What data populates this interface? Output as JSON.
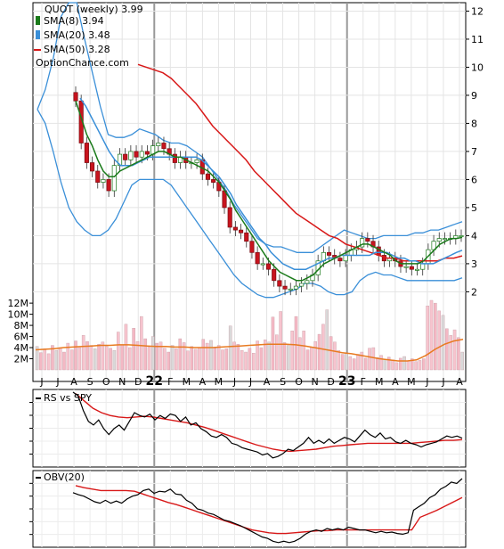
{
  "chart_data": [
    {
      "type": "candlestick",
      "legend": {
        "title": "QUOT (weekly) 3.99",
        "items": [
          {
            "label": "SMA(8) 3.94",
            "color": "#1a7a1a"
          },
          {
            "label": "SMA(20) 3.48",
            "color": "#3a8fd8"
          },
          {
            "label": "SMA(50) 3.28",
            "color": "#d81818"
          }
        ],
        "watermark": "OptionChance.com"
      },
      "y_ticks": [
        "12",
        "11",
        "10",
        "9",
        "8",
        "7",
        "6",
        "5",
        "4",
        "3",
        "2"
      ],
      "ylim": [
        1.6,
        12.3
      ],
      "x_ticks": [
        "J",
        "J",
        "A",
        "S",
        "O",
        "N",
        "D",
        "22",
        "F",
        "M",
        "A",
        "M",
        "J",
        "J",
        "A",
        "S",
        "O",
        "N",
        "D",
        "23",
        "F",
        "M",
        "A",
        "M",
        "J",
        "J",
        "A"
      ],
      "close": [
        8.8,
        7.3,
        6.6,
        6.3,
        5.9,
        6.0,
        5.6,
        6.5,
        6.9,
        6.7,
        7.0,
        6.8,
        7.0,
        6.9,
        7.2,
        7.3,
        7.1,
        6.9,
        6.6,
        6.8,
        6.6,
        6.6,
        6.7,
        6.2,
        6.0,
        5.9,
        5.6,
        5.0,
        4.3,
        4.2,
        4.1,
        3.8,
        3.4,
        3.0,
        3.0,
        2.8,
        2.4,
        2.2,
        2.1,
        2.1,
        2.2,
        2.3,
        2.4,
        2.6,
        3.1,
        3.4,
        3.3,
        3.2,
        3.1,
        3.3,
        3.5,
        3.6,
        3.9,
        3.8,
        3.6,
        3.3,
        3.1,
        3.2,
        3.1,
        2.9,
        2.9,
        2.8,
        2.8,
        3.0,
        3.5,
        3.8,
        3.9,
        3.9,
        3.9,
        4.0,
        4.0
      ],
      "sma8": [
        8.8,
        8.2,
        7.6,
        7.2,
        6.7,
        6.3,
        6.1,
        6.1,
        6.3,
        6.4,
        6.5,
        6.6,
        6.7,
        6.8,
        6.9,
        7.0,
        7.0,
        6.9,
        6.8,
        6.8,
        6.7,
        6.6,
        6.5,
        6.4,
        6.3,
        6.1,
        5.9,
        5.6,
        5.3,
        4.9,
        4.6,
        4.3,
        4.0,
        3.7,
        3.4,
        3.1,
        2.9,
        2.7,
        2.6,
        2.5,
        2.4,
        2.4,
        2.5,
        2.6,
        2.8,
        3.0,
        3.1,
        3.2,
        3.3,
        3.4,
        3.5,
        3.6,
        3.7,
        3.7,
        3.6,
        3.5,
        3.4,
        3.3,
        3.1,
        3.0,
        3.0,
        3.0,
        3.0,
        3.1,
        3.3,
        3.5,
        3.7,
        3.8,
        3.9,
        3.9,
        3.94
      ],
      "sma20": [
        8.9,
        8.6,
        8.2,
        7.8,
        7.4,
        7.0,
        6.7,
        6.5,
        6.5,
        6.5,
        6.6,
        6.7,
        6.8,
        6.8,
        6.8,
        6.8,
        6.8,
        6.8,
        6.8,
        6.8,
        6.8,
        6.7,
        6.5,
        6.3,
        6.1,
        5.8,
        5.5,
        5.1,
        4.8,
        4.5,
        4.2,
        3.9,
        3.7,
        3.4,
        3.2,
        3.0,
        2.9,
        2.8,
        2.8,
        2.8,
        2.9,
        3.0,
        3.1,
        3.2,
        3.2,
        3.3,
        3.3,
        3.3,
        3.3,
        3.3,
        3.3,
        3.4,
        3.4,
        3.4,
        3.3,
        3.2,
        3.2,
        3.1,
        3.1,
        3.0,
        3.0,
        3.0,
        3.1,
        3.2,
        3.3,
        3.4,
        3.48
      ],
      "bb_upper": [
        8.5,
        9.2,
        10.3,
        11.8,
        12.3,
        12.3,
        11.0,
        9.8,
        8.6,
        7.6,
        7.5,
        7.5,
        7.6,
        7.8,
        7.7,
        7.6,
        7.4,
        7.3,
        7.3,
        7.2,
        7.0,
        6.8,
        6.4,
        6.0,
        5.6,
        5.1,
        4.7,
        4.3,
        3.9,
        3.7,
        3.6,
        3.6,
        3.5,
        3.4,
        3.4,
        3.4,
        3.6,
        3.8,
        4.0,
        4.2,
        4.1,
        4.0,
        3.9,
        3.9,
        4.0,
        4.0,
        4.0,
        4.0,
        4.1,
        4.1,
        4.2,
        4.2,
        4.3,
        4.4,
        4.5
      ],
      "bb_lower": [
        8.5,
        8.0,
        7.0,
        5.9,
        5.0,
        4.5,
        4.2,
        4.0,
        4.0,
        4.2,
        4.6,
        5.2,
        5.8,
        6.0,
        6.0,
        6.0,
        6.0,
        5.8,
        5.4,
        5.0,
        4.6,
        4.2,
        3.8,
        3.4,
        3.0,
        2.6,
        2.3,
        2.1,
        1.9,
        1.8,
        1.8,
        1.9,
        2.0,
        2.1,
        2.3,
        2.3,
        2.2,
        2.0,
        1.9,
        1.9,
        2.0,
        2.4,
        2.6,
        2.7,
        2.6,
        2.6,
        2.5,
        2.4,
        2.4,
        2.4,
        2.4,
        2.4,
        2.4,
        2.4,
        2.5
      ],
      "sma50": [
        10.1,
        10.0,
        9.9,
        9.8,
        9.6,
        9.3,
        9.0,
        8.7,
        8.3,
        7.9,
        7.6,
        7.3,
        7.0,
        6.7,
        6.3,
        6.0,
        5.7,
        5.4,
        5.1,
        4.8,
        4.6,
        4.4,
        4.2,
        4.0,
        3.9,
        3.7,
        3.6,
        3.5,
        3.4,
        3.3,
        3.2,
        3.2,
        3.1,
        3.1,
        3.1,
        3.1,
        3.1,
        3.2,
        3.2,
        3.28
      ]
    },
    {
      "type": "bar",
      "y_ticks": [
        "12M",
        "10M",
        "8M",
        "6M",
        "4M",
        "2M"
      ],
      "ylim": [
        0,
        12.5
      ],
      "volume": [
        4.2,
        3.1,
        3.8,
        2.9,
        4.4,
        3.5,
        4.0,
        3.2,
        4.8,
        3.6,
        5.2,
        4.0,
        6.2,
        5.1,
        4.4,
        3.8,
        4.6,
        5.0,
        4.2,
        3.9,
        3.5,
        6.8,
        4.5,
        8.2,
        4.0,
        7.5,
        5.1,
        9.6,
        5.6,
        4.1,
        6.0,
        4.8,
        5.0,
        3.9,
        3.2,
        4.4,
        3.8,
        5.6,
        4.9,
        3.4,
        4.2,
        3.7,
        4.0,
        5.5,
        4.8,
        5.3,
        3.9,
        4.4,
        3.6,
        3.8,
        7.9,
        5.0,
        4.6,
        3.5,
        3.2,
        3.9,
        3.0,
        5.2,
        4.0,
        5.4,
        5.0,
        9.5,
        6.3,
        10.5,
        4.9,
        4.4,
        7.0,
        9.6,
        5.8,
        7.0,
        3.6,
        4.0,
        5.1,
        6.4,
        8.2,
        10.8,
        6.0,
        5.0,
        3.5,
        2.8,
        3.0,
        2.4,
        2.0,
        2.8,
        3.2,
        2.1,
        3.9,
        4.0,
        2.2,
        2.6,
        1.9,
        2.3,
        1.8,
        1.3,
        2.1,
        2.4,
        1.6,
        2.0,
        1.5,
        1.7,
        2.0,
        11.5,
        12.5,
        12.0,
        10.6,
        9.8,
        7.4,
        6.2,
        7.2,
        5.8,
        3.2
      ],
      "volume_sma": [
        3.6,
        3.7,
        3.8,
        4.0,
        4.1,
        4.2,
        4.3,
        4.4,
        4.4,
        4.5,
        4.5,
        4.4,
        4.3,
        4.2,
        4.2,
        4.1,
        4.1,
        4.0,
        4.0,
        4.0,
        4.1,
        4.2,
        4.3,
        4.4,
        4.5,
        4.6,
        4.6,
        4.6,
        4.5,
        4.3,
        4.0,
        3.7,
        3.4,
        3.1,
        2.9,
        2.6,
        2.3,
        2.0,
        1.8,
        1.6,
        1.6,
        1.8,
        2.6,
        3.7,
        4.6,
        5.2,
        5.5
      ]
    },
    {
      "type": "line",
      "legend": {
        "items": [
          {
            "label": "RS vs SPY",
            "color": "#000000"
          }
        ]
      },
      "series": [
        {
          "values": [
            1.0,
            0.95,
            0.75,
            0.6,
            0.55,
            0.62,
            0.5,
            0.42,
            0.5,
            0.55,
            0.48,
            0.6,
            0.72,
            0.68,
            0.66,
            0.7,
            0.62,
            0.68,
            0.64,
            0.7,
            0.68,
            0.6,
            0.66,
            0.55,
            0.58,
            0.5,
            0.46,
            0.4,
            0.38,
            0.42,
            0.38,
            0.3,
            0.28,
            0.24,
            0.22,
            0.2,
            0.18,
            0.14,
            0.16,
            0.1,
            0.12,
            0.16,
            0.22,
            0.2,
            0.25,
            0.3,
            0.38,
            0.3,
            0.34,
            0.3,
            0.36,
            0.3,
            0.34,
            0.38,
            0.36,
            0.32,
            0.4,
            0.48,
            0.42,
            0.38,
            0.44,
            0.36,
            0.38,
            0.32,
            0.3,
            0.34,
            0.3,
            0.28,
            0.25,
            0.28,
            0.3,
            0.32,
            0.36,
            0.4,
            0.38,
            0.4,
            0.37
          ]
        },
        {
          "values": [
            0.98,
            0.88,
            0.78,
            0.72,
            0.68,
            0.66,
            0.65,
            0.66,
            0.67,
            0.66,
            0.64,
            0.62,
            0.6,
            0.58,
            0.55,
            0.52,
            0.48,
            0.44,
            0.4,
            0.36,
            0.32,
            0.28,
            0.25,
            0.22,
            0.2,
            0.19,
            0.2,
            0.21,
            0.22,
            0.24,
            0.26,
            0.27,
            0.28,
            0.29,
            0.3,
            0.3,
            0.3,
            0.3,
            0.3,
            0.3,
            0.31,
            0.32,
            0.33,
            0.34,
            0.34,
            0.35
          ]
        }
      ]
    },
    {
      "type": "line",
      "legend": {
        "items": [
          {
            "label": "OBV(20)",
            "color": "#000000"
          }
        ]
      },
      "series": [
        {
          "values": [
            0.75,
            0.72,
            0.7,
            0.66,
            0.62,
            0.6,
            0.64,
            0.6,
            0.63,
            0.6,
            0.66,
            0.7,
            0.72,
            0.78,
            0.8,
            0.74,
            0.77,
            0.76,
            0.8,
            0.73,
            0.72,
            0.64,
            0.6,
            0.52,
            0.5,
            0.46,
            0.44,
            0.4,
            0.36,
            0.34,
            0.31,
            0.28,
            0.24,
            0.2,
            0.16,
            0.12,
            0.1,
            0.06,
            0.04,
            0.06,
            0.04,
            0.06,
            0.1,
            0.16,
            0.2,
            0.22,
            0.2,
            0.24,
            0.22,
            0.24,
            0.22,
            0.26,
            0.24,
            0.22,
            0.22,
            0.2,
            0.18,
            0.2,
            0.18,
            0.19,
            0.17,
            0.16,
            0.18,
            0.5,
            0.55,
            0.6,
            0.68,
            0.72,
            0.8,
            0.84,
            0.9,
            0.88,
            0.95
          ]
        },
        {
          "values": [
            0.85,
            0.82,
            0.8,
            0.78,
            0.78,
            0.78,
            0.78,
            0.77,
            0.73,
            0.69,
            0.65,
            0.61,
            0.58,
            0.54,
            0.5,
            0.46,
            0.42,
            0.38,
            0.34,
            0.3,
            0.26,
            0.22,
            0.2,
            0.18,
            0.17,
            0.17,
            0.18,
            0.19,
            0.2,
            0.21,
            0.21,
            0.22,
            0.22,
            0.22,
            0.22,
            0.22,
            0.22,
            0.22,
            0.22,
            0.22,
            0.22,
            0.4,
            0.45,
            0.5,
            0.56,
            0.62,
            0.68
          ]
        }
      ]
    }
  ]
}
